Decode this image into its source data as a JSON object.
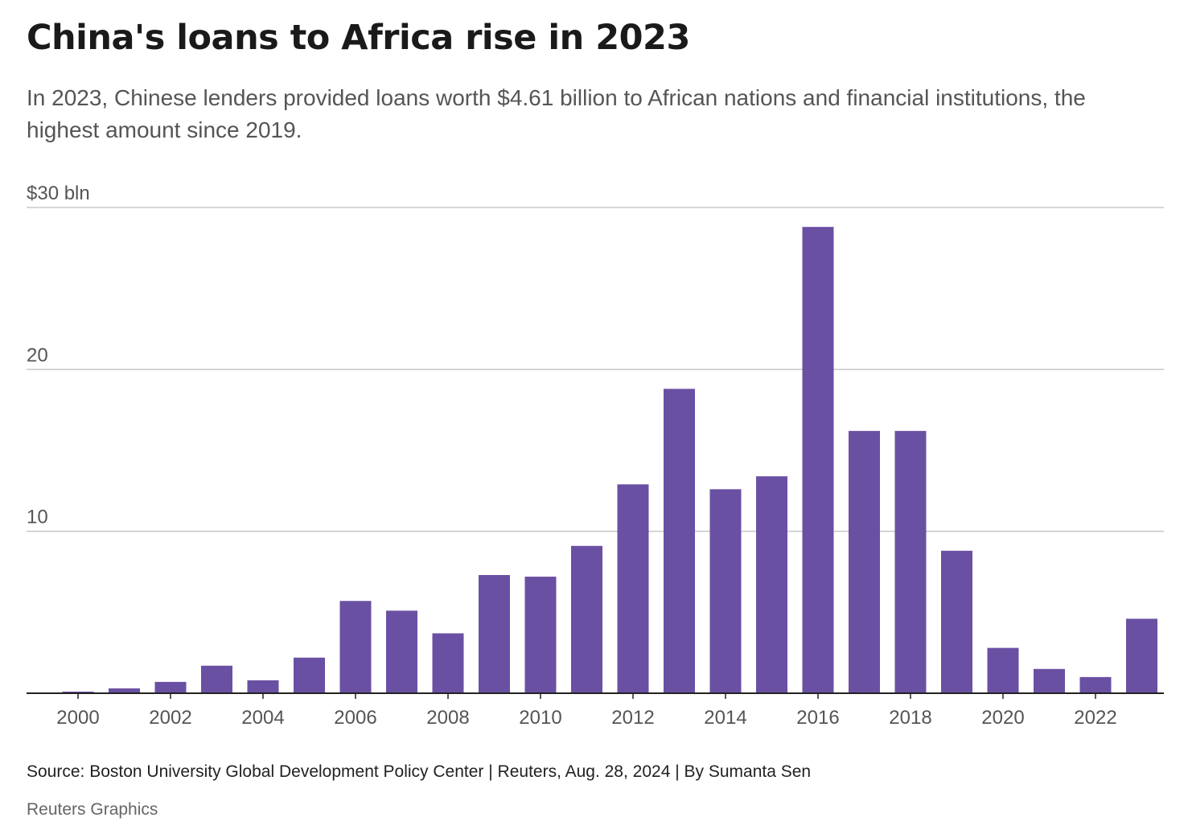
{
  "header": {
    "title": "China's loans to Africa rise in 2023",
    "subtitle": "In 2023, Chinese lenders provided loans worth $4.61 billion to African nations and financial institutions, the highest amount since 2019."
  },
  "footer": {
    "source": "Source: Boston University Global Development Policy Center | Reuters, Aug. 28, 2024 | By Sumanta Sen",
    "credit": "Reuters Graphics"
  },
  "colors": {
    "bar": "#6a50a3",
    "grid": "#c8c8c8",
    "axis": "#222222",
    "tick_text": "#555555"
  },
  "chart_data": {
    "type": "bar",
    "categories": [
      "2000",
      "2001",
      "2002",
      "2003",
      "2004",
      "2005",
      "2006",
      "2007",
      "2008",
      "2009",
      "2010",
      "2011",
      "2012",
      "2013",
      "2014",
      "2015",
      "2016",
      "2017",
      "2018",
      "2019",
      "2020",
      "2021",
      "2022",
      "2023"
    ],
    "values": [
      0.1,
      0.3,
      0.7,
      1.7,
      0.8,
      2.2,
      5.7,
      5.1,
      3.7,
      7.3,
      7.2,
      9.1,
      12.9,
      18.8,
      12.6,
      13.4,
      28.8,
      16.2,
      16.2,
      8.8,
      2.8,
      1.5,
      1.0,
      4.6
    ],
    "x_tick_labels": [
      "2000",
      "2002",
      "2004",
      "2006",
      "2008",
      "2010",
      "2012",
      "2014",
      "2016",
      "2018",
      "2020",
      "2022"
    ],
    "y_ticks": [
      {
        "value": 10,
        "label": "10"
      },
      {
        "value": 20,
        "label": "20"
      },
      {
        "value": 30,
        "label": "$30 bln"
      }
    ],
    "ylim": [
      0,
      30
    ],
    "grid": true,
    "legend": "none",
    "title": "China's loans to Africa rise in 2023",
    "xlabel": "",
    "ylabel": ""
  }
}
